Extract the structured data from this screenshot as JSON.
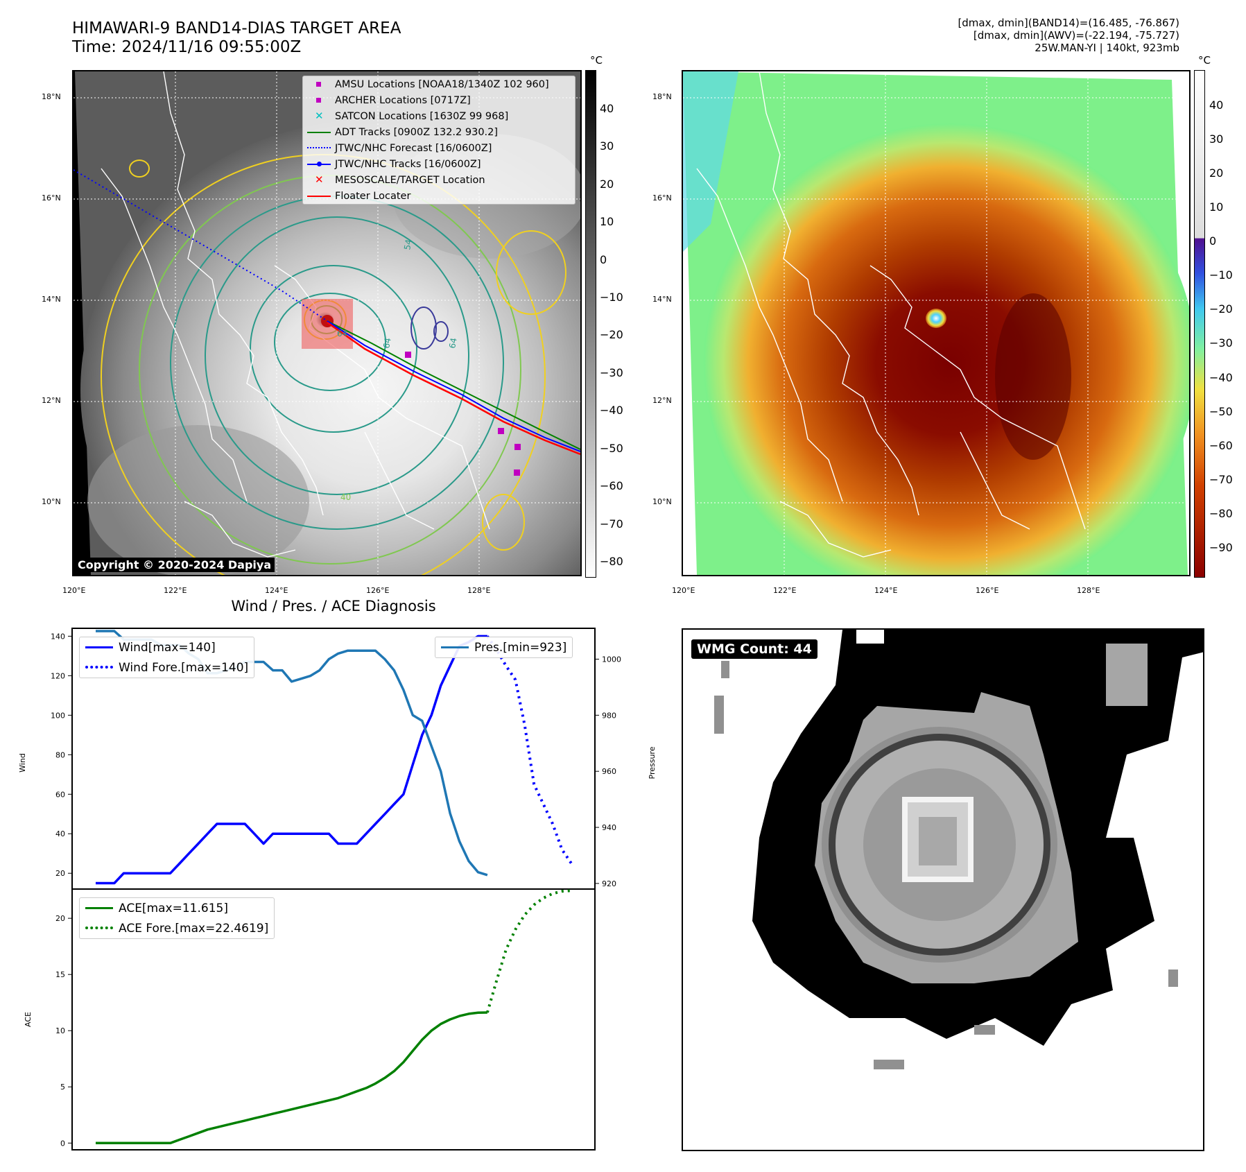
{
  "header": {
    "title_line1": "HIMAWARI-9 BAND14-DIAS TARGET AREA",
    "title_line2": "Time: 2024/11/16 09:55:00Z",
    "info_line1": "[dmax, dmin](BAND14)=(16.485, -76.867)",
    "info_line2": "[dmax, dmin](AWV)=(-22.194, -75.727)",
    "info_line3": "25W.MAN-YI | 140kt, 923mb"
  },
  "map_axes": {
    "lat_ticks": [
      "18°N",
      "16°N",
      "14°N",
      "12°N",
      "10°N"
    ],
    "lon_ticks": [
      "120°E",
      "122°E",
      "124°E",
      "126°E",
      "128°E"
    ]
  },
  "ir_panel": {
    "colorbar_unit": "°C",
    "colorbar_ticks": [
      "40",
      "30",
      "20",
      "10",
      "0",
      "−10",
      "−20",
      "−30",
      "−40",
      "−50",
      "−60",
      "−70",
      "−80"
    ],
    "copyright": "Copyright © 2020-2024 Dapiya",
    "legend": [
      {
        "label": "AMSU Locations [NOAA18/1340Z 102 960]",
        "color": "#c000c0",
        "kind": "square"
      },
      {
        "label": "ARCHER Locations [0717Z]",
        "color": "#c000c0",
        "kind": "square"
      },
      {
        "label": "SATCON Locations [1630Z 99 968]",
        "color": "#00c0c0",
        "kind": "x"
      },
      {
        "label": "ADT Tracks [0900Z 132.2 930.2]",
        "color": "#008000",
        "kind": "line"
      },
      {
        "label": "JTWC/NHC Forecast [16/0600Z]",
        "color": "#0000ff",
        "kind": "dotted"
      },
      {
        "label": "JTWC/NHC Tracks [16/0600Z]",
        "color": "#0000ff",
        "kind": "line-dot"
      },
      {
        "label": "MESOSCALE/TARGET Location",
        "color": "#ff0000",
        "kind": "x"
      },
      {
        "label": "Floater Locater",
        "color": "#ff0000",
        "kind": "line"
      }
    ],
    "contour_labels": [
      "54",
      "64",
      "64",
      "64",
      "40"
    ]
  },
  "enh_panel": {
    "colorbar_unit": "°C",
    "colorbar_ticks": [
      "40",
      "30",
      "20",
      "10",
      "0",
      "−10",
      "−20",
      "−30",
      "−40",
      "−50",
      "−60",
      "−70",
      "−80",
      "−90"
    ]
  },
  "wmg_panel": {
    "count_label": "WMG Count: 44"
  },
  "diag": {
    "title": "Wind / Pres. / ACE Diagnosis",
    "wind_axis_label": "Wind",
    "pressure_axis_label": "Pressure",
    "ace_axis_label": "ACE",
    "wind_legend_1": "Wind[max=140]",
    "wind_legend_2": "Wind Fore.[max=140]",
    "pres_legend": "Pres.[min=923]",
    "ace_legend_1": "ACE[max=11.615]",
    "ace_legend_2": "ACE Fore.[max=22.4619]",
    "wind_ticks": [
      "140",
      "120",
      "100",
      "80",
      "60",
      "40",
      "20"
    ],
    "pres_ticks": [
      "1000",
      "980",
      "960",
      "940",
      "920"
    ],
    "ace_ticks": [
      "20",
      "15",
      "10",
      "5",
      "0"
    ]
  },
  "chart_data": [
    {
      "type": "line",
      "title": "Wind / Pres. / ACE Diagnosis",
      "ylabel": "Wind",
      "ylim": [
        12,
        144
      ],
      "x": [
        0,
        1,
        2,
        3,
        4,
        5,
        6,
        7,
        8,
        9,
        10,
        11,
        12,
        13,
        14,
        15,
        16,
        17,
        18,
        19,
        20,
        21,
        22,
        23,
        24,
        25,
        26,
        27,
        28,
        29,
        30,
        31,
        32,
        33,
        34,
        35,
        36,
        37,
        38,
        39,
        40,
        41,
        42,
        43,
        44,
        45,
        46,
        47,
        48,
        49,
        50,
        51
      ],
      "series": [
        {
          "name": "Wind[max=140]",
          "color": "#0000ff",
          "style": "solid",
          "x": [
            0,
            1,
            2,
            3,
            4,
            5,
            6,
            7,
            8,
            9,
            10,
            11,
            12,
            13,
            14,
            15,
            16,
            17,
            18,
            19,
            20,
            21,
            22,
            23,
            24,
            25,
            26,
            27,
            28,
            29,
            30,
            31,
            32,
            33,
            34,
            35,
            36,
            37,
            38,
            39,
            40,
            41,
            42
          ],
          "values": [
            15,
            15,
            15,
            20,
            20,
            20,
            20,
            20,
            20,
            25,
            30,
            35,
            40,
            45,
            45,
            45,
            45,
            40,
            35,
            40,
            40,
            40,
            40,
            40,
            40,
            40,
            35,
            35,
            35,
            40,
            45,
            50,
            55,
            60,
            75,
            90,
            100,
            115,
            125,
            135,
            137,
            140,
            140
          ]
        },
        {
          "name": "Wind Fore.[max=140]",
          "color": "#0000ff",
          "style": "dotted",
          "x": [
            42,
            43,
            44,
            45,
            46,
            47,
            48,
            49,
            50,
            51
          ],
          "values": [
            140,
            133,
            125,
            118,
            95,
            65,
            55,
            45,
            32,
            25
          ]
        },
        {
          "name": "Pres.[min=923]",
          "color": "#1f77b4",
          "style": "solid",
          "axis": "right",
          "ylim": [
            918,
            1011
          ],
          "x": [
            0,
            1,
            2,
            3,
            4,
            5,
            6,
            7,
            8,
            9,
            10,
            11,
            12,
            13,
            14,
            15,
            16,
            17,
            18,
            19,
            20,
            21,
            22,
            23,
            24,
            25,
            26,
            27,
            28,
            29,
            30,
            31,
            32,
            33,
            34,
            35,
            36,
            37,
            38,
            39,
            40,
            41,
            42
          ],
          "values": [
            1010,
            1010,
            1010,
            1007,
            1007,
            1007,
            1007,
            1005,
            1005,
            1005,
            1002,
            1000,
            995,
            995,
            996,
            997,
            999,
            999,
            999,
            996,
            996,
            992,
            993,
            994,
            996,
            1000,
            1002,
            1003,
            1003,
            1003,
            1003,
            1000,
            996,
            989,
            980,
            978,
            969,
            960,
            945,
            935,
            928,
            924,
            923
          ]
        }
      ]
    },
    {
      "type": "line",
      "ylabel": "ACE",
      "ylim": [
        -0.6,
        22.6
      ],
      "series": [
        {
          "name": "ACE[max=11.615]",
          "color": "#008000",
          "style": "solid",
          "x": [
            0,
            1,
            2,
            3,
            4,
            5,
            6,
            7,
            8,
            9,
            10,
            11,
            12,
            13,
            14,
            15,
            16,
            17,
            18,
            19,
            20,
            21,
            22,
            23,
            24,
            25,
            26,
            27,
            28,
            29,
            30,
            31,
            32,
            33,
            34,
            35,
            36,
            37,
            38,
            39,
            40,
            41,
            42
          ],
          "values": [
            0,
            0,
            0,
            0,
            0,
            0,
            0,
            0,
            0,
            0.3,
            0.6,
            0.9,
            1.2,
            1.4,
            1.6,
            1.8,
            2.0,
            2.2,
            2.4,
            2.6,
            2.8,
            3.0,
            3.2,
            3.4,
            3.6,
            3.8,
            4.0,
            4.3,
            4.6,
            4.9,
            5.3,
            5.8,
            6.4,
            7.2,
            8.2,
            9.2,
            10.0,
            10.6,
            11.0,
            11.3,
            11.5,
            11.6,
            11.615
          ]
        },
        {
          "name": "ACE Fore.[max=22.4619]",
          "color": "#008000",
          "style": "dotted",
          "x": [
            42,
            43,
            44,
            45,
            46,
            47,
            48,
            49,
            50,
            51
          ],
          "values": [
            11.615,
            14.5,
            17.2,
            19.0,
            20.3,
            21.2,
            21.8,
            22.2,
            22.4,
            22.4619
          ]
        }
      ]
    }
  ]
}
